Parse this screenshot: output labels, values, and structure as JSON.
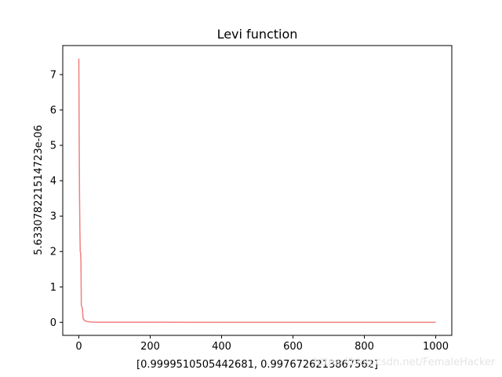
{
  "chart_data": {
    "type": "line",
    "title": "Levi function",
    "xlabel": "[0.9999510505442681, 0.9976726213867562]",
    "ylabel": "5.633078221514723e-06",
    "xlim": [
      -45,
      1045
    ],
    "ylim": [
      -0.37,
      7.82
    ],
    "grid": false,
    "x_ticks": [
      0,
      200,
      400,
      600,
      800,
      1000
    ],
    "y_ticks": [
      0,
      1,
      2,
      3,
      4,
      5,
      6,
      7
    ],
    "series": [
      {
        "color": "#f08080",
        "x": [
          0,
          1,
          2,
          3,
          4,
          5,
          6,
          7,
          8,
          9,
          10,
          12,
          14,
          16,
          20,
          25,
          30,
          40,
          50,
          100,
          200,
          400,
          600,
          800,
          1000
        ],
        "y": [
          7.45,
          5.3,
          3.6,
          2.6,
          2.0,
          1.95,
          1.7,
          0.5,
          0.45,
          0.42,
          0.4,
          0.1,
          0.08,
          0.05,
          0.03,
          0.02,
          0.01,
          0.005,
          0.003,
          0.001,
          0.0005,
          0.0002,
          0.0001,
          5e-05,
          5.6e-06
        ]
      }
    ]
  },
  "watermark": "https://blog.csdn.net/FemaleHacker"
}
